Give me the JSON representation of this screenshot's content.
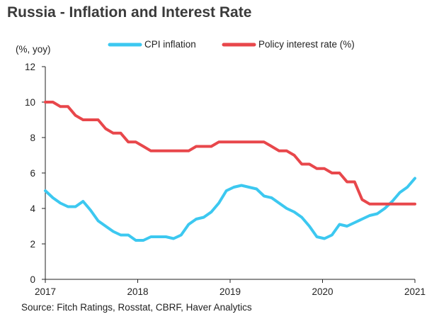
{
  "title": "Russia - Inflation and Interest Rate",
  "source": "Source: Fitch Ratings, Rosstat, CBRF, Haver Analytics",
  "chart_data": {
    "type": "line",
    "unit_label": "(%, yoy)",
    "ylim": [
      0,
      12
    ],
    "yticks": [
      "0",
      "2",
      "4",
      "6",
      "8",
      "10",
      "12"
    ],
    "xlim": [
      2017,
      2021
    ],
    "xticks": [
      "2017",
      "2018",
      "2019",
      "2020",
      "2021"
    ],
    "grid": false,
    "legend_position": "top",
    "series": [
      {
        "name": "CPI inflation",
        "color": "#3cc8f0",
        "values": [
          5.0,
          4.6,
          4.3,
          4.1,
          4.1,
          4.4,
          3.9,
          3.3,
          3.0,
          2.7,
          2.5,
          2.5,
          2.2,
          2.2,
          2.4,
          2.4,
          2.4,
          2.3,
          2.5,
          3.1,
          3.4,
          3.5,
          3.8,
          4.3,
          5.0,
          5.2,
          5.3,
          5.2,
          5.1,
          4.7,
          4.6,
          4.3,
          4.0,
          3.8,
          3.5,
          3.0,
          2.4,
          2.3,
          2.5,
          3.1,
          3.0,
          3.2,
          3.4,
          3.6,
          3.7,
          4.0,
          4.4,
          4.9,
          5.2,
          5.7
        ]
      },
      {
        "name": "Policy interest rate (%)",
        "color": "#e8474b",
        "values": [
          10.0,
          10.0,
          9.75,
          9.75,
          9.25,
          9.0,
          9.0,
          9.0,
          8.5,
          8.25,
          8.25,
          7.75,
          7.75,
          7.5,
          7.25,
          7.25,
          7.25,
          7.25,
          7.25,
          7.25,
          7.5,
          7.5,
          7.5,
          7.75,
          7.75,
          7.75,
          7.75,
          7.75,
          7.75,
          7.75,
          7.5,
          7.25,
          7.25,
          7.0,
          6.5,
          6.5,
          6.25,
          6.25,
          6.0,
          6.0,
          5.5,
          5.5,
          4.5,
          4.25,
          4.25,
          4.25,
          4.25,
          4.25,
          4.25,
          4.25
        ]
      }
    ]
  }
}
